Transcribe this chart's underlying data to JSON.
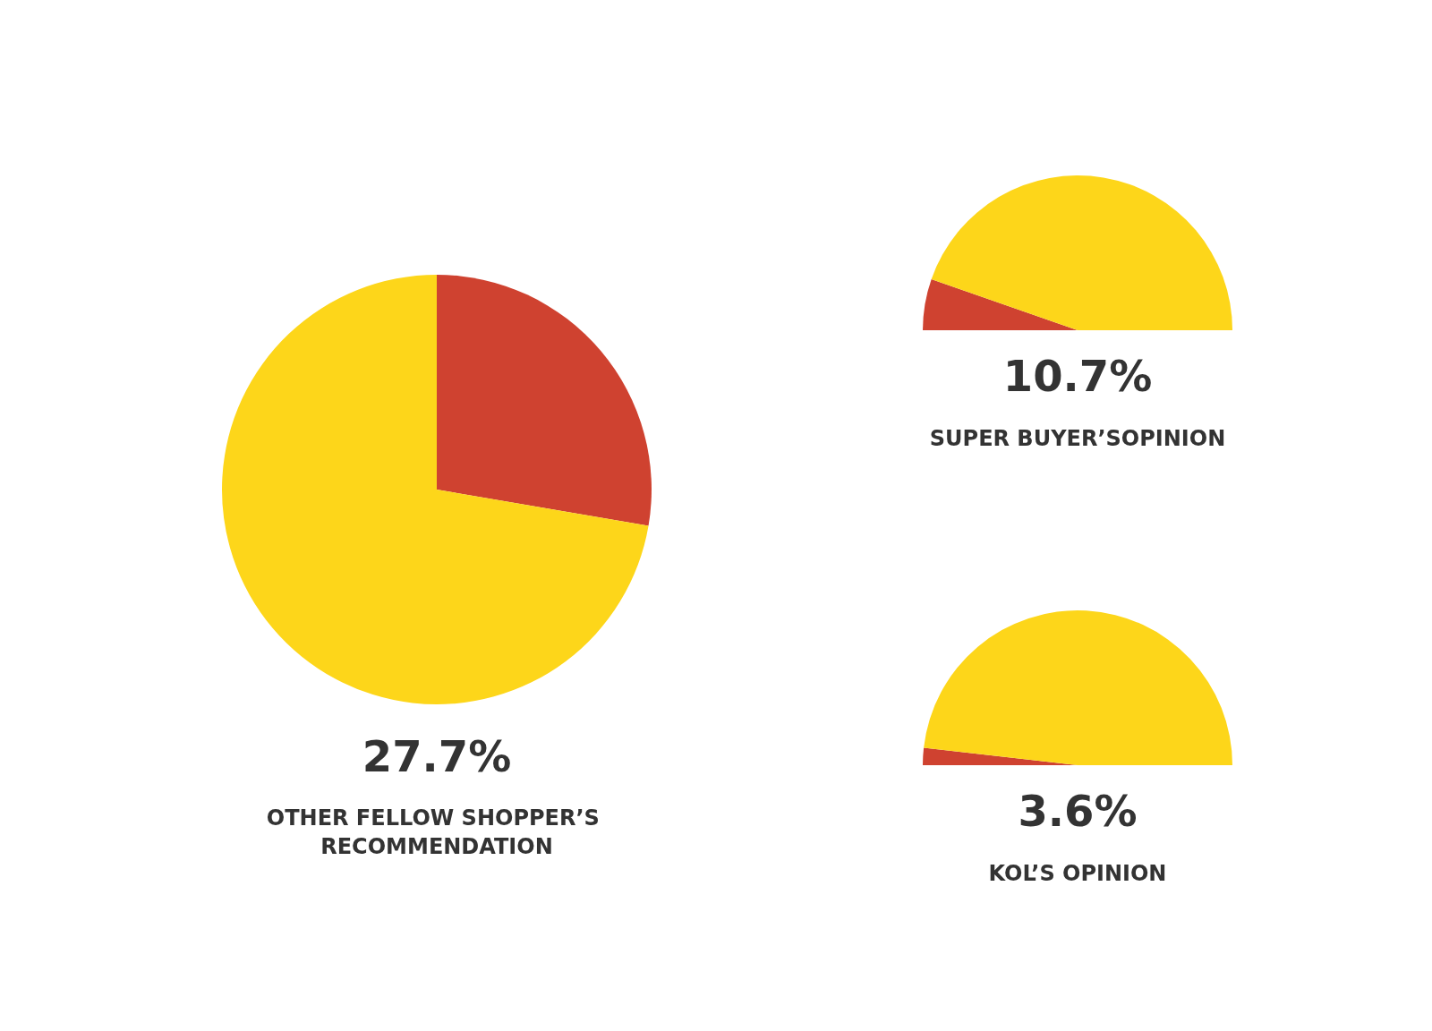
{
  "chart_data": [
    {
      "type": "pie",
      "title": "OTHER FELLOW SHOPPER’S RECOMMENDATION",
      "annotations": [
        "27.7%"
      ],
      "categories": [
        null,
        null
      ],
      "values": [
        27.7,
        72.3
      ],
      "colors": [
        "#cf4230",
        "#fdd61a"
      ]
    },
    {
      "type": "pie",
      "title": "SUPER BUYER’SOPINION",
      "annotations": [
        "10.7%"
      ],
      "categories": [
        null,
        null
      ],
      "values": [
        10.7,
        89.3
      ],
      "colors": [
        "#cf4230",
        "#fdd61a"
      ]
    },
    {
      "type": "pie",
      "title": "KOL’S OPINION",
      "annotations": [
        "3.6%"
      ],
      "categories": [
        null,
        null
      ],
      "values": [
        3.6,
        96.4
      ],
      "colors": [
        "#cf4230",
        "#fdd61a"
      ]
    }
  ]
}
